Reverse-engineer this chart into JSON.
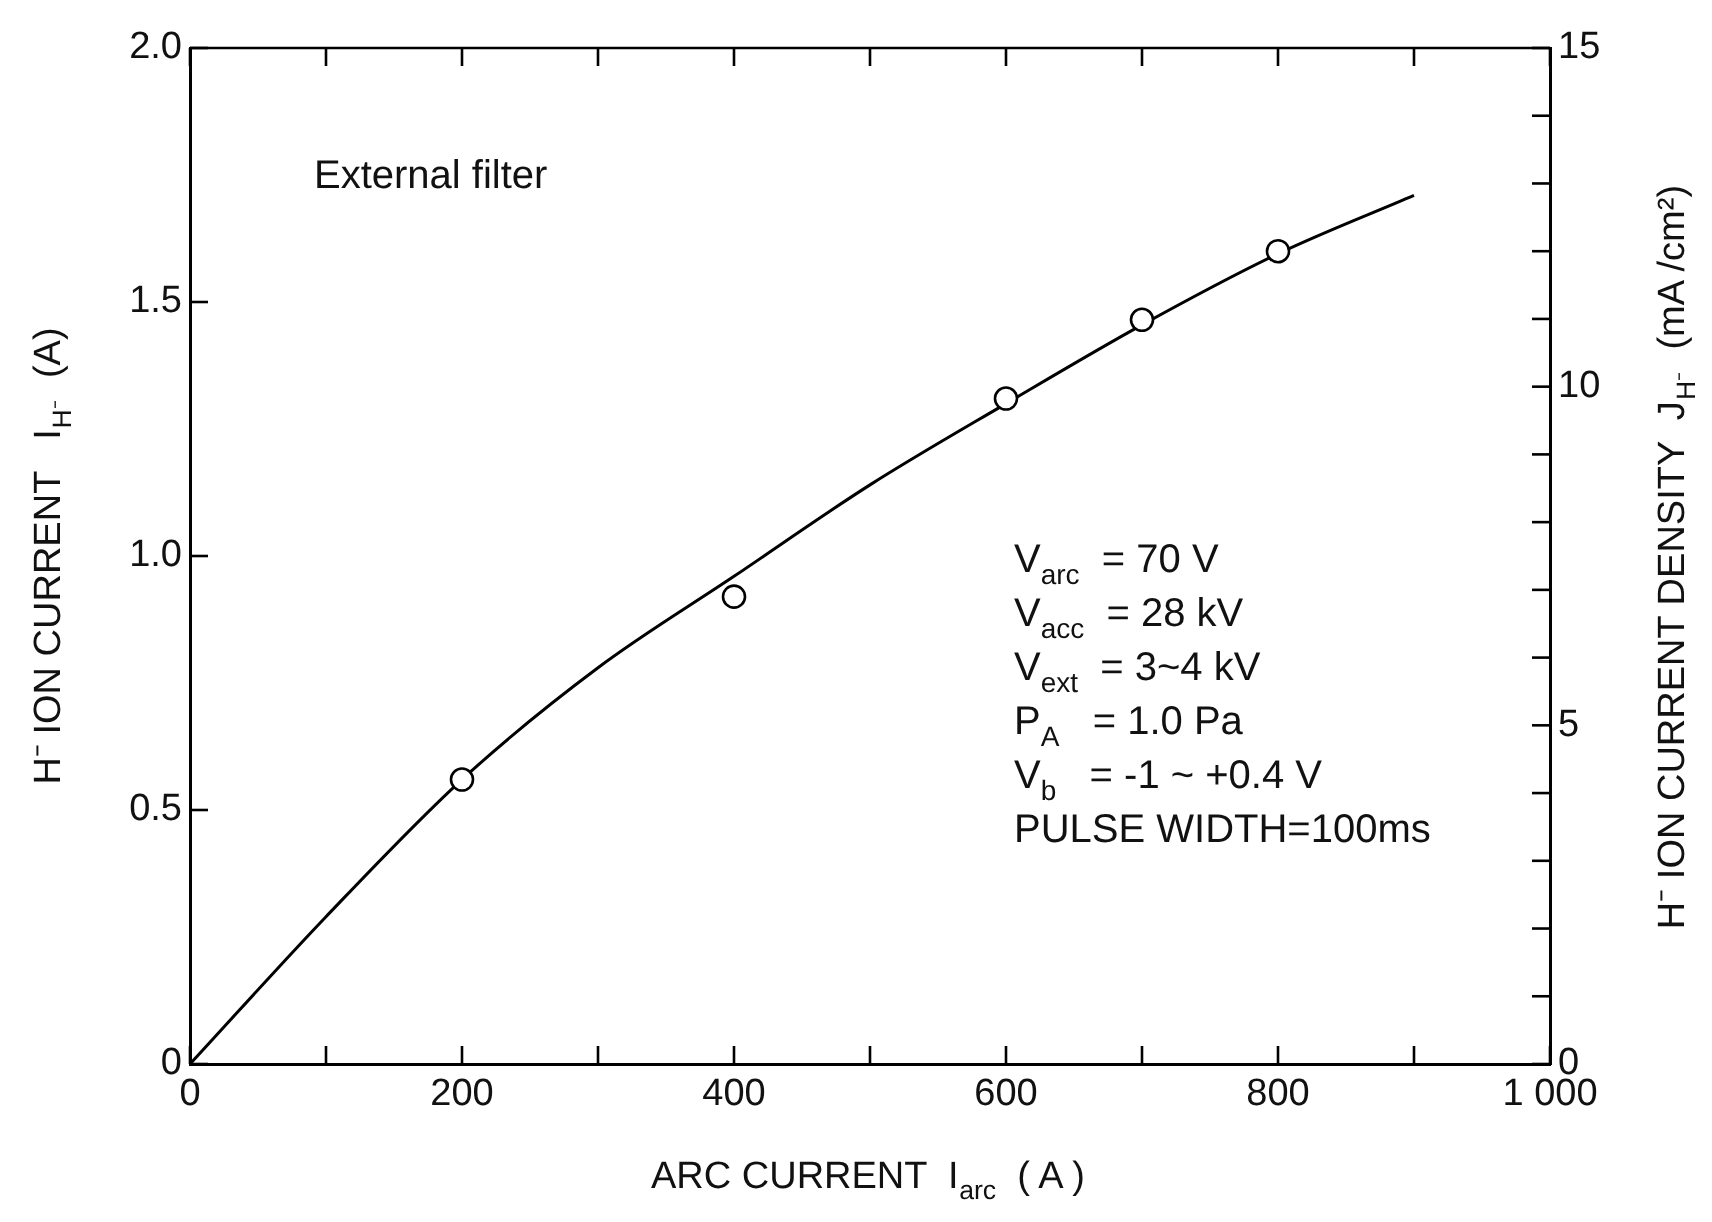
{
  "chart_data": {
    "type": "scatter",
    "xlabel": "ARC CURRENT  I$_{arc}$  ( A )",
    "ylabel": "H⁻ ION CURRENT   I$_{H⁻}$  (A)",
    "y2label": "H⁻ ION CURRENT DENSITY  J$_{H⁻}$  (mA /cm²)",
    "annotations": [
      "External filter",
      "V$_{arc}$  = 70 V",
      "V$_{acc}$  = 28 kV",
      "V$_{ext}$  = 3~4 kV",
      "P$_{A}$   = 1.0 Pa",
      "V$_{b}$   = -1 ~ +0.4 V",
      "PULSE WIDTH=100ms"
    ],
    "xlim": [
      0,
      1000
    ],
    "xticks": [
      0,
      {
        "value": 100,
        "label": null
      },
      200,
      {
        "value": 300,
        "label": null
      },
      400,
      {
        "value": 500,
        "label": null
      },
      600,
      {
        "value": 700,
        "label": null
      },
      800,
      {
        "value": 900,
        "label": null
      },
      {
        "value": 1000,
        "label": "1 000"
      }
    ],
    "ylim": [
      0,
      2
    ],
    "yticks": [
      0,
      0.5,
      {
        "value": 1,
        "label": "1.0"
      },
      1.5,
      {
        "value": 2,
        "label": "2.0"
      }
    ],
    "y2lim": [
      0,
      15
    ],
    "y2ticks": [
      0,
      {
        "value": 1,
        "label": null
      },
      {
        "value": 2,
        "label": null
      },
      {
        "value": 3,
        "label": null
      },
      {
        "value": 4,
        "label": null
      },
      5,
      {
        "value": 6,
        "label": null
      },
      {
        "value": 7,
        "label": null
      },
      {
        "value": 8,
        "label": null
      },
      {
        "value": 9,
        "label": null
      },
      10,
      {
        "value": 11,
        "label": null
      },
      {
        "value": 12,
        "label": null
      },
      {
        "value": 13,
        "label": null
      },
      {
        "value": 14,
        "label": null
      },
      15
    ],
    "series": [
      {
        "type": "scatter",
        "x": [
          200,
          400,
          600,
          700,
          800
        ],
        "values": [
          0.56,
          0.92,
          1.31,
          1.465,
          1.6
        ],
        "color": "#000000",
        "marker": "circle"
      },
      {
        "type": "line",
        "x": [
          0,
          100,
          200,
          300,
          400,
          500,
          600,
          700,
          800,
          900
        ],
        "values": [
          0,
          0.29,
          0.56,
          0.78,
          0.96,
          1.14,
          1.3,
          1.455,
          1.595,
          1.71
        ],
        "color": "#000000",
        "marker": "none"
      }
    ],
    "grid": false,
    "legend": false
  }
}
